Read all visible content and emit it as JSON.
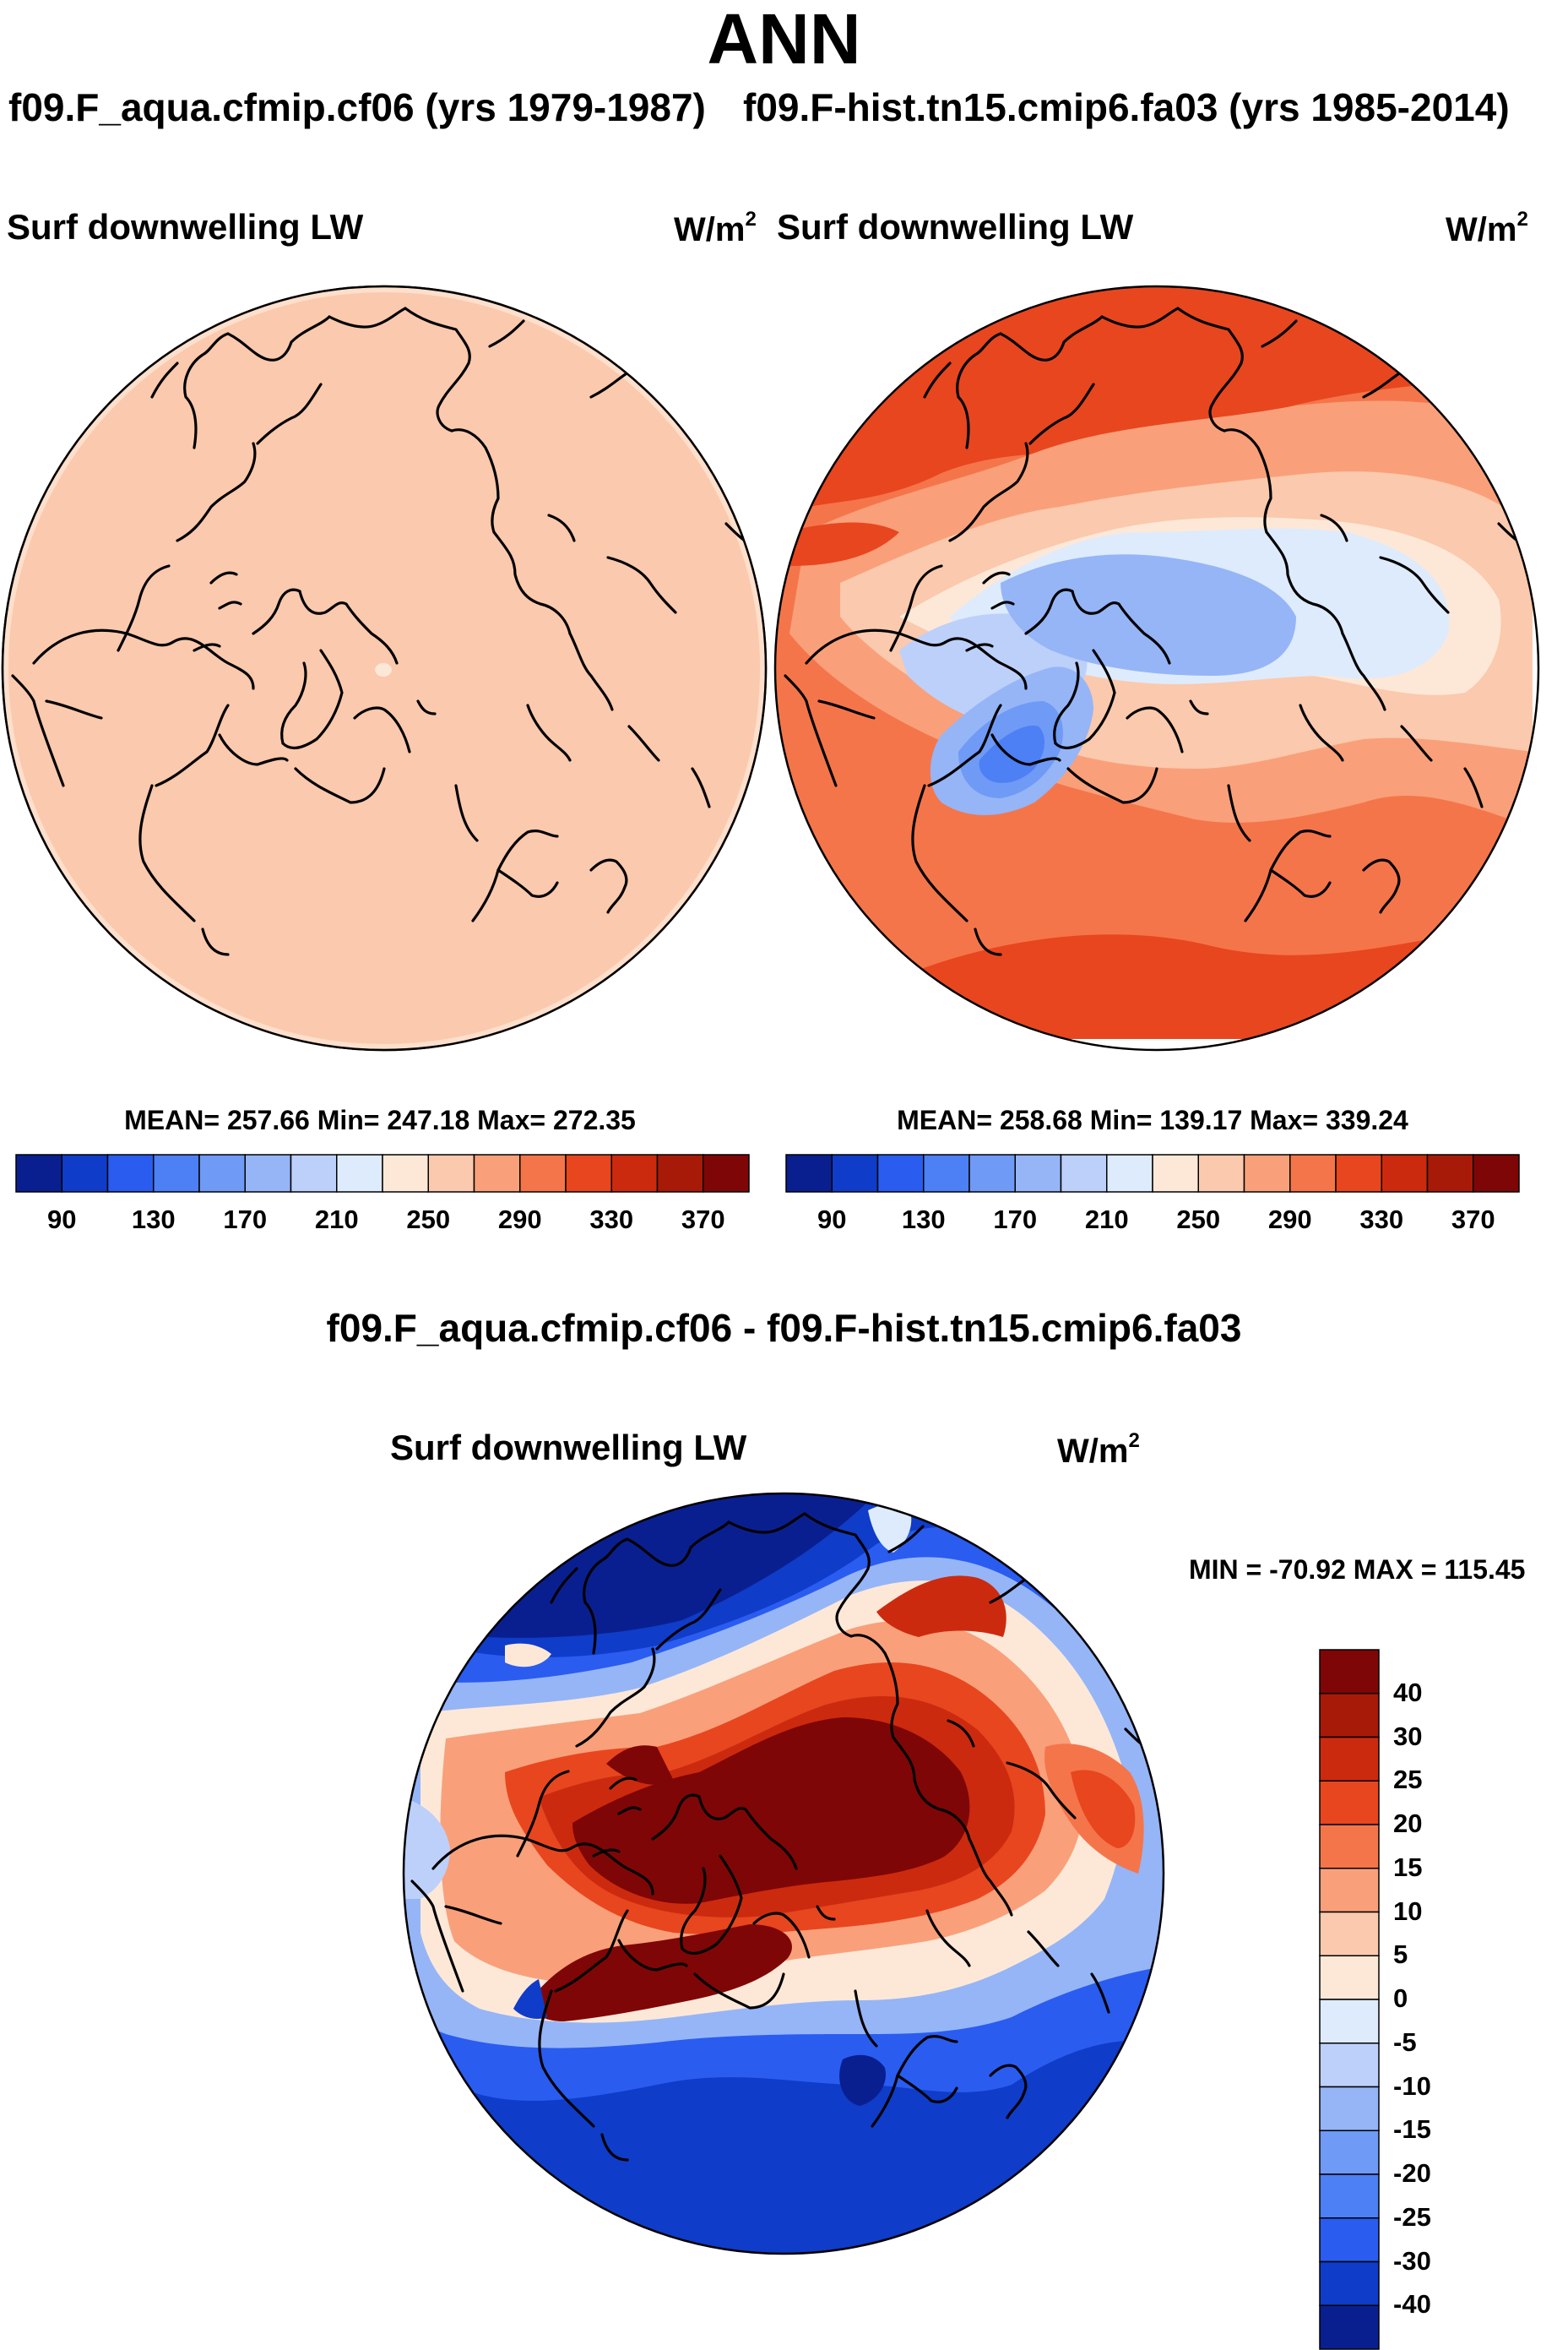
{
  "main_title": "ANN",
  "panels": {
    "left": {
      "case_title": "f09.F_aqua.cfmip.cf06 (yrs 1979-1987)",
      "variable": "Surf downwelling LW",
      "units_base": "W/m",
      "units_exp": "2",
      "stats": "MEAN= 257.66  Min= 247.18  Max= 272.35",
      "colorbar_ticks": [
        "90",
        "130",
        "170",
        "210",
        "250",
        "290",
        "330",
        "370"
      ]
    },
    "right": {
      "case_title": "f09.F-hist.tn15.cmip6.fa03 (yrs 1985-2014)",
      "variable": "Surf downwelling LW",
      "units_base": "W/m",
      "units_exp": "2",
      "stats": "MEAN= 258.68  Min= 139.17  Max= 339.24",
      "colorbar_ticks": [
        "90",
        "130",
        "170",
        "210",
        "250",
        "290",
        "330",
        "370"
      ]
    },
    "diff": {
      "title": "f09.F_aqua.cfmip.cf06 - f09.F-hist.tn15.cmip6.fa03",
      "variable": "Surf downwelling LW",
      "units_base": "W/m",
      "units_exp": "2",
      "minmax": "MIN = -70.92  MAX = 115.45",
      "colorbar_ticks": [
        "40",
        "30",
        "25",
        "20",
        "15",
        "10",
        "5",
        "0",
        "-5",
        "-10",
        "-15",
        "-20",
        "-25",
        "-30",
        "-40"
      ]
    }
  },
  "colors": {
    "abs_levels": [
      "#0a1f8f",
      "#0f3cc9",
      "#2a5cf0",
      "#4d7ff5",
      "#6f9af5",
      "#95b5f7",
      "#bdd0fa",
      "#deebfc",
      "#fde8d8",
      "#fbc9ad",
      "#f9a07a",
      "#f5754a",
      "#e8461f",
      "#cc2a0e",
      "#a81a08",
      "#7f0606"
    ],
    "diff_levels": [
      "#0a1f8f",
      "#0f3cc9",
      "#2a5cf0",
      "#4d7ff5",
      "#6f9af5",
      "#95b5f7",
      "#bdd0fa",
      "#deebfc",
      "#fde8d8",
      "#fbc9ad",
      "#f9a07a",
      "#f5754a",
      "#e8461f",
      "#cc2a0e",
      "#a81a08",
      "#7f0606"
    ],
    "left_field": "#fbc9ad"
  },
  "chart_data": [
    {
      "type": "heatmap",
      "title": "f09.F_aqua.cfmip.cf06 (yrs 1979-1987)",
      "variable": "Surf downwelling LW",
      "units": "W/m2",
      "projection": "north polar stereographic",
      "mean": 257.66,
      "min": 247.18,
      "max": 272.35,
      "contour_levels": [
        90,
        100,
        110,
        130,
        150,
        170,
        190,
        210,
        230,
        250,
        270,
        290,
        310,
        330,
        350,
        370
      ]
    },
    {
      "type": "heatmap",
      "title": "f09.F-hist.tn15.cmip6.fa03 (yrs 1985-2014)",
      "variable": "Surf downwelling LW",
      "units": "W/m2",
      "projection": "north polar stereographic",
      "mean": 258.68,
      "min": 139.17,
      "max": 339.24,
      "contour_levels": [
        90,
        100,
        110,
        130,
        150,
        170,
        190,
        210,
        230,
        250,
        270,
        290,
        310,
        330,
        350,
        370
      ]
    },
    {
      "type": "heatmap",
      "title": "f09.F_aqua.cfmip.cf06 - f09.F-hist.tn15.cmip6.fa03",
      "variable": "Surf downwelling LW",
      "units": "W/m2",
      "projection": "north polar stereographic",
      "min": -70.92,
      "max": 115.45,
      "contour_levels": [
        -40,
        -30,
        -25,
        -20,
        -15,
        -10,
        -5,
        0,
        5,
        10,
        15,
        20,
        25,
        30,
        40
      ]
    }
  ]
}
